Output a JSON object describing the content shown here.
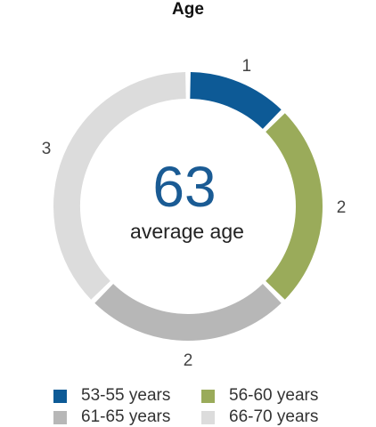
{
  "chart_data": {
    "type": "pie",
    "title": "Age",
    "categories": [
      "53-55 years",
      "56-60 years",
      "61-65 years",
      "66-70 years"
    ],
    "values": [
      1,
      2,
      2,
      3
    ],
    "colors": [
      "#0d5a96",
      "#9aab5a",
      "#b7b7b7",
      "#dcdcdc"
    ],
    "center_value": "63",
    "center_label": "average age",
    "legend_position": "bottom"
  }
}
